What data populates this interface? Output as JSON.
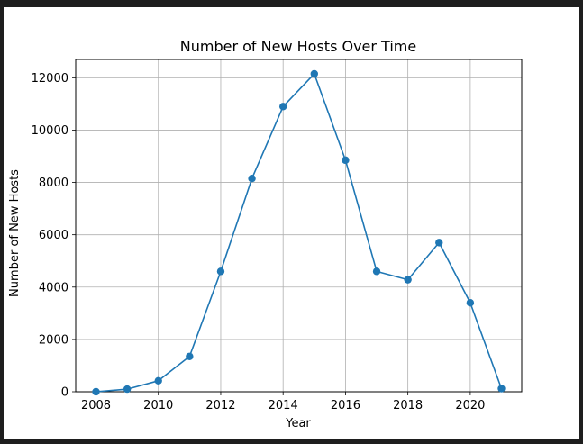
{
  "chart_data": {
    "type": "line",
    "title": "Number of New Hosts Over Time",
    "xlabel": "Year",
    "ylabel": "Number of New Hosts",
    "x": [
      2008,
      2009,
      2010,
      2011,
      2012,
      2013,
      2014,
      2015,
      2016,
      2017,
      2018,
      2019,
      2020,
      2021
    ],
    "series": [
      {
        "name": "New Hosts",
        "values": [
          0,
          100,
          420,
          1350,
          4600,
          8150,
          10900,
          12150,
          8850,
          4600,
          4280,
          5700,
          3400,
          120
        ],
        "color": "#1f77b4"
      }
    ],
    "xlim": [
      2007.35,
      2021.65
    ],
    "ylim": [
      0,
      12700
    ],
    "xticks": [
      2008,
      2010,
      2012,
      2014,
      2016,
      2018,
      2020
    ],
    "yticks": [
      0,
      2000,
      4000,
      6000,
      8000,
      10000,
      12000
    ],
    "xtick_labels": [
      "2008",
      "2010",
      "2012",
      "2014",
      "2016",
      "2018",
      "2020"
    ],
    "ytick_labels": [
      "0",
      "2000",
      "4000",
      "6000",
      "8000",
      "10000",
      "12000"
    ],
    "grid": true
  }
}
